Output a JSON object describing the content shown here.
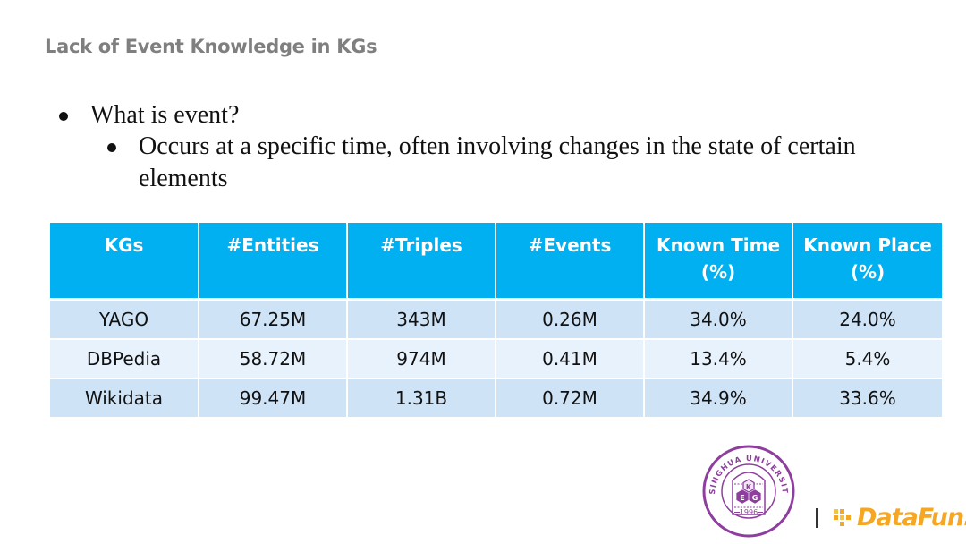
{
  "header": {
    "title": "Lack of Event Knowledge in KGs"
  },
  "bullets": {
    "level1": "What is event?",
    "level2": "Occurs at a specific time, often involving changes in the state of certain elements"
  },
  "table": {
    "headers": [
      "KGs",
      "#Entities",
      "#Triples",
      "#Events",
      "Known Time (%)",
      "Known Place (%)"
    ],
    "rows": [
      [
        "YAGO",
        "67.25M",
        "343M",
        "0.26M",
        "34.0%",
        "24.0%"
      ],
      [
        "DBPedia",
        "58.72M",
        "974M",
        "0.41M",
        "13.4%",
        "5.4%"
      ],
      [
        "Wikidata",
        "99.47M",
        "1.31B",
        "0.72M",
        "34.9%",
        "33.6%"
      ]
    ]
  },
  "logos": {
    "seal_text": "TSINGHUA UNIVERSITY",
    "seal_year": "1996",
    "seal_letters": [
      "K",
      "E",
      "G"
    ],
    "brand": "DataFun.",
    "seal_color": "#8e3f9e",
    "brand_color": "#f5a623"
  }
}
